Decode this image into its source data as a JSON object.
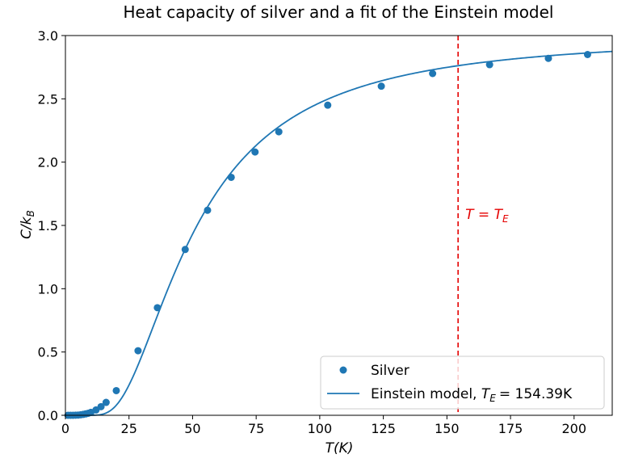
{
  "chart_data": {
    "type": "scatter",
    "title": "Heat capacity of silver and a fit of the Einstein model",
    "xlabel": "T(K)",
    "ylabel": "C/k_B",
    "xlim": [
      0,
      215
    ],
    "ylim": [
      0,
      3.0
    ],
    "xticks": [
      "0",
      "25",
      "50",
      "75",
      "100",
      "125",
      "150",
      "175",
      "200"
    ],
    "yticks": [
      "0.0",
      "0.5",
      "1.0",
      "1.5",
      "2.0",
      "2.5",
      "3.0"
    ],
    "grid": false,
    "legend_position": "lower-right",
    "series": [
      {
        "name": "Silver",
        "kind": "scatter",
        "color": "#1f77b4",
        "x": [
          1,
          2,
          3,
          4,
          5,
          6,
          7,
          8,
          9,
          10,
          12,
          14,
          16,
          20,
          28.56,
          36.16,
          47.09,
          55.88,
          65.19,
          74.56,
          83.91,
          103.14,
          124.2,
          144.38,
          166.78,
          189.9,
          205.3
        ],
        "y": [
          0.0,
          0.0,
          0.0,
          0.001,
          0.002,
          0.004,
          0.007,
          0.011,
          0.016,
          0.023,
          0.042,
          0.068,
          0.102,
          0.195,
          0.51,
          0.85,
          1.31,
          1.62,
          1.88,
          2.08,
          2.24,
          2.45,
          2.6,
          2.7,
          2.77,
          2.82,
          2.85
        ]
      },
      {
        "name_prefix": "Einstein model, ",
        "name_math": "T",
        "name_sub": "E",
        "name_value": "= 154.39K",
        "kind": "line",
        "color": "#1f77b4",
        "model": "einstein",
        "T_E": 154.39
      }
    ],
    "annotation": {
      "x_value": 154.39,
      "label_math": "T = T",
      "label_sub": "E",
      "color": "#e50000",
      "linestyle": "dashed"
    }
  }
}
